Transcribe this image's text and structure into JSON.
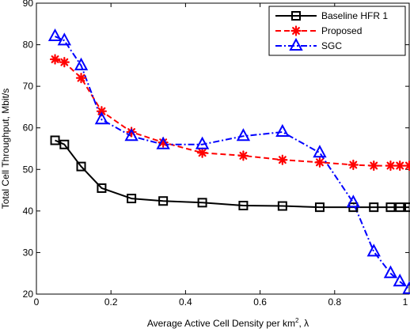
{
  "chart_data": {
    "type": "line",
    "title": "",
    "xlabel": "Average Active Cell Density per km",
    "xlabel_sup": "2",
    "xlabel_suffix": ", λ",
    "ylabel": "Total Cell Throughput, Mbit/s",
    "xlim": [
      0,
      1
    ],
    "ylim": [
      20,
      90
    ],
    "xticks": [
      0,
      0.2,
      0.4,
      0.6,
      0.8,
      1
    ],
    "xtick_labels": [
      "0",
      "0.2",
      "0.4",
      "0.6",
      "0.8",
      "1"
    ],
    "yticks": [
      20,
      30,
      40,
      50,
      60,
      70,
      80,
      90
    ],
    "ytick_labels": [
      "20",
      "30",
      "40",
      "50",
      "60",
      "70",
      "80",
      "90"
    ],
    "grid": false,
    "legend_position": "top-right",
    "series": [
      {
        "name": "Baseline HFR 1",
        "color": "#000000",
        "line_style": "solid",
        "marker": "square",
        "x": [
          0.05,
          0.075,
          0.12,
          0.175,
          0.255,
          0.34,
          0.445,
          0.555,
          0.66,
          0.76,
          0.85,
          0.905,
          0.95,
          0.975,
          1.0
        ],
        "y": [
          57,
          56,
          50.7,
          45.5,
          43,
          42.4,
          42,
          41.3,
          41.2,
          40.9,
          40.9,
          40.9,
          40.9,
          40.9,
          40.9
        ]
      },
      {
        "name": "Proposed",
        "color": "#ff0000",
        "line_style": "dashed",
        "marker": "asterisk",
        "x": [
          0.05,
          0.075,
          0.12,
          0.175,
          0.255,
          0.34,
          0.445,
          0.555,
          0.66,
          0.76,
          0.85,
          0.905,
          0.95,
          0.975,
          1.0
        ],
        "y": [
          76.5,
          75.8,
          72,
          64,
          59,
          56.5,
          54,
          53.3,
          52.3,
          51.7,
          51.1,
          50.9,
          50.9,
          50.9,
          50.9
        ]
      },
      {
        "name": "SGC",
        "color": "#0000ff",
        "line_style": "dashdot",
        "marker": "triangle",
        "x": [
          0.05,
          0.075,
          0.12,
          0.175,
          0.255,
          0.34,
          0.445,
          0.555,
          0.66,
          0.76,
          0.85,
          0.905,
          0.95,
          0.975,
          1.0
        ],
        "y": [
          82,
          81,
          75,
          62,
          58,
          56,
          56,
          58,
          59,
          54,
          42,
          30.2,
          25,
          23,
          21.2
        ]
      }
    ]
  }
}
